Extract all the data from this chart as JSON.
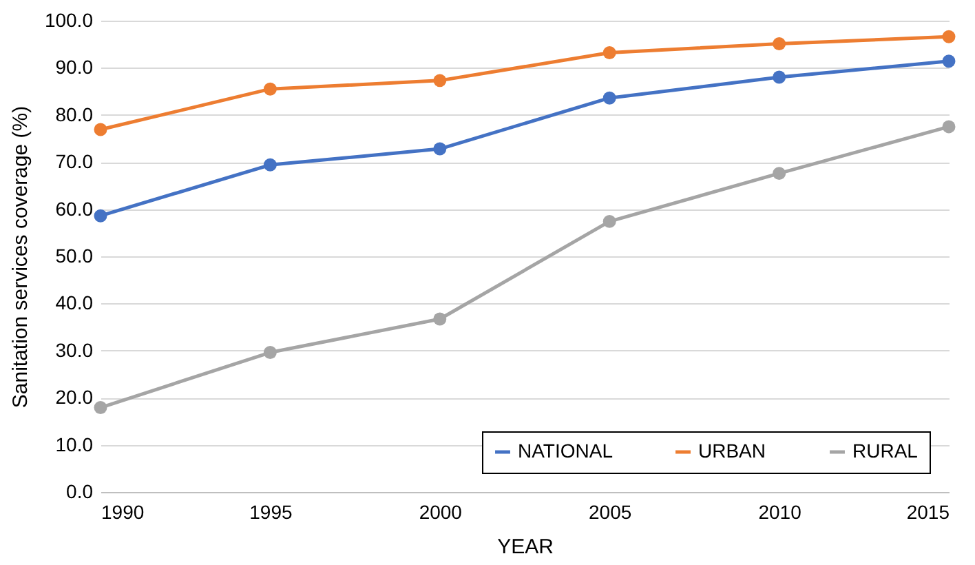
{
  "chart_data": {
    "type": "line",
    "xlabel": "YEAR",
    "ylabel": "Sanitation services coverage (%)",
    "x": [
      1990,
      1995,
      2000,
      2005,
      2010,
      2015
    ],
    "series": [
      {
        "name": "NATIONAL",
        "color": "#4472c4",
        "values": [
          58.6,
          69.4,
          72.8,
          83.6,
          88.0,
          91.4
        ]
      },
      {
        "name": "URBAN",
        "color": "#ed7d31",
        "values": [
          76.9,
          85.5,
          87.3,
          93.2,
          95.1,
          96.6
        ]
      },
      {
        "name": "RURAL",
        "color": "#a5a5a5",
        "values": [
          17.9,
          29.6,
          36.7,
          57.4,
          67.6,
          77.5
        ]
      }
    ],
    "xlim": [
      1990,
      2015
    ],
    "xticks": [
      1990,
      1995,
      2000,
      2005,
      2010,
      2015
    ],
    "ylim": [
      0,
      100
    ],
    "yticks": [
      {
        "value": 0,
        "label": "0.0"
      },
      {
        "value": 10,
        "label": "10.0"
      },
      {
        "value": 20,
        "label": "20.0"
      },
      {
        "value": 30,
        "label": "30.0"
      },
      {
        "value": 40,
        "label": "40.0"
      },
      {
        "value": 50,
        "label": "50.0"
      },
      {
        "value": 60,
        "label": "60.0"
      },
      {
        "value": 70,
        "label": "70.0"
      },
      {
        "value": 80,
        "label": "80.0"
      },
      {
        "value": 90,
        "label": "90.0"
      },
      {
        "value": 100,
        "label": "100.0"
      }
    ],
    "grid": "y",
    "legend": "bottom right",
    "marker": "circle",
    "line_style": "solid"
  }
}
